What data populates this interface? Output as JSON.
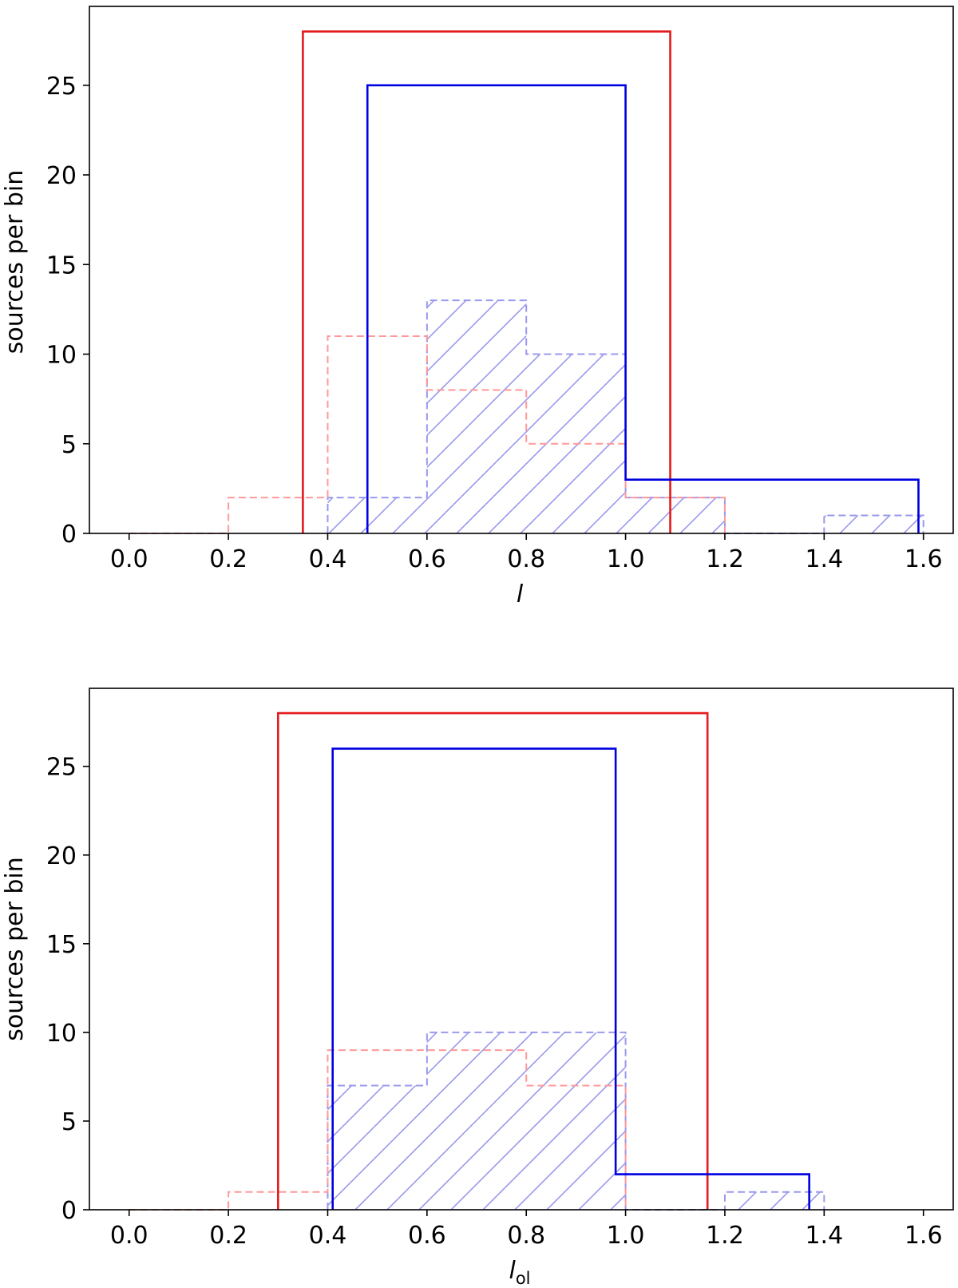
{
  "chart_data": [
    {
      "type": "histogram-step",
      "xlabel": "l",
      "xlabel_subscript": "",
      "ylabel": "sources per bin",
      "xlim": [
        -0.08,
        1.66
      ],
      "ylim": [
        0,
        29.4
      ],
      "xticks": [
        0.0,
        0.2,
        0.4,
        0.6,
        0.8,
        1.0,
        1.2,
        1.4,
        1.6
      ],
      "xtick_labels": [
        "0.0",
        "0.2",
        "0.4",
        "0.6",
        "0.8",
        "1.0",
        "1.2",
        "1.4",
        "1.6"
      ],
      "yticks": [
        0,
        5,
        10,
        15,
        20,
        25
      ],
      "ytick_labels": [
        "0",
        "5",
        "10",
        "15",
        "20",
        "25"
      ],
      "series": [
        {
          "style": "dashed-hatched",
          "color": "#9999ee",
          "edges": [
            0.4,
            0.6,
            0.8,
            1.0,
            1.2,
            1.4,
            1.6
          ],
          "counts": [
            2,
            13,
            10,
            2,
            0,
            1
          ]
        },
        {
          "style": "dashed",
          "color": "#ff9999",
          "edges": [
            0.0,
            0.2,
            0.4,
            0.6,
            0.8,
            1.0,
            1.2
          ],
          "counts": [
            0,
            2,
            11,
            8,
            5,
            2
          ]
        },
        {
          "style": "solid",
          "color": "#e41a1c",
          "edges": [
            0.35,
            1.09
          ],
          "counts": [
            28
          ]
        },
        {
          "style": "solid",
          "color": "#0000e0",
          "edges": [
            0.48,
            1.0,
            1.59
          ],
          "counts": [
            25,
            3
          ]
        }
      ]
    },
    {
      "type": "histogram-step",
      "xlabel": "l",
      "xlabel_subscript": "ol",
      "ylabel": "sources per bin",
      "xlim": [
        -0.08,
        1.66
      ],
      "ylim": [
        0,
        29.4
      ],
      "xticks": [
        0.0,
        0.2,
        0.4,
        0.6,
        0.8,
        1.0,
        1.2,
        1.4,
        1.6
      ],
      "xtick_labels": [
        "0.0",
        "0.2",
        "0.4",
        "0.6",
        "0.8",
        "1.0",
        "1.2",
        "1.4",
        "1.6"
      ],
      "yticks": [
        0,
        5,
        10,
        15,
        20,
        25
      ],
      "ytick_labels": [
        "0",
        "5",
        "10",
        "15",
        "20",
        "25"
      ],
      "series": [
        {
          "style": "dashed-hatched",
          "color": "#9999ee",
          "edges": [
            0.4,
            0.6,
            0.8,
            1.0,
            1.2,
            1.4
          ],
          "counts": [
            7,
            10,
            10,
            0,
            1
          ]
        },
        {
          "style": "dashed",
          "color": "#ff9999",
          "edges": [
            0.0,
            0.2,
            0.4,
            0.6,
            0.8,
            1.0
          ],
          "counts": [
            0,
            1,
            9,
            9,
            7
          ]
        },
        {
          "style": "solid",
          "color": "#e41a1c",
          "edges": [
            0.3,
            1.165
          ],
          "counts": [
            28
          ]
        },
        {
          "style": "solid",
          "color": "#0000e0",
          "edges": [
            0.41,
            0.98,
            1.37
          ],
          "counts": [
            26,
            2
          ]
        }
      ]
    }
  ]
}
